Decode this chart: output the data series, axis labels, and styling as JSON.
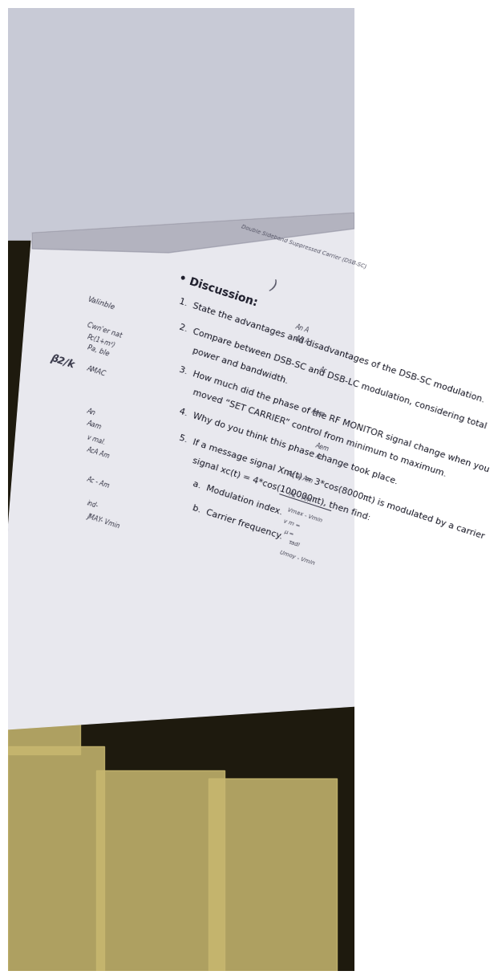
{
  "bg_ceiling_color": "#c8cad6",
  "bg_dark_color": "#1e1a0e",
  "rug_colors": [
    "#c8b870",
    "#b8a858",
    "#d0c080"
  ],
  "paper_color": "#e8e8ee",
  "paper_shadow_color": "#9090a0",
  "text_main_color": "#1a1a28",
  "text_annot_color": "#3a3a4a",
  "text_right_color": "#444454",
  "title_text": "Double Sideband Suppressed Carrier (DSB-SC)",
  "bullet_text": "• Discussion:",
  "curly": ")",
  "q1": "1.  State the advantages and disadvantages of the DSB-SC modulation.",
  "q2a": "2.  Compare between DSB-SC and DSB-LC modulation, considering total",
  "q2b": "     power and bandwidth.",
  "q3a": "3.  How much did the phase of the RF MONITOR signal change when you",
  "q3b": "     moved “SET CARRIER” control from minimum to maximum.",
  "q4": "4.  Why do you think this phase change took place.",
  "q5a": "5.  If a message signal Xm(t) = 3*cos(8000πt) is modulated by a carrier",
  "q5b": "     signal xc(t) = 4*cos(100000πt), then find:",
  "qa": "     a.  Modulation index.",
  "qb": "     b.  Carrier frequency.",
  "annot_valinble": "Valinble",
  "annot_cwner": "Cwn'er nat",
  "annot_pc": "Pc(1+m²)",
  "annot_pa": "Pa, ble",
  "annot_an_a": "An A",
  "annot_ana2": "ΔΔ A",
  "annot_amac": "AMAC",
  "annot_an": "An",
  "annot_aam": "Aam",
  "annot_vmal": "v mal.",
  "annot_aca": "AcA Am",
  "annot_acam": "Ac - Am",
  "annot_ind": "ind-",
  "annot_jmay": "JMAY- Vmin",
  "annot_aem": "Aem",
  "annot_ac_frac_top": "Ac + Am",
  "annot_ac_frac_bot": "Ac - Am",
  "annot_vmax": "Vmax - Vmin",
  "annot_mu": "μ =",
  "annot_vm": "v m =",
  "annot_tadl": "τadl",
  "annot_umoyu": "Umoy - Vmin",
  "left_margin": "β2/k",
  "right_annot_ac": "Ac",
  "right_annot_aem2": "Aem",
  "paper_rotation_deg": -18
}
